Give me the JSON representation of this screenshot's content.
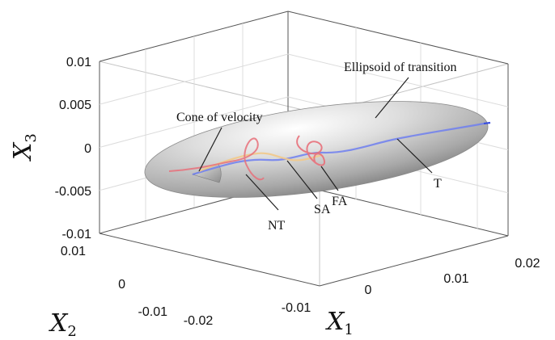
{
  "chart_data": {
    "type": "line3d",
    "xlabel": "X",
    "xlabel_sub": "1",
    "ylabel": "X",
    "ylabel_sub": "2",
    "zlabel": "X",
    "zlabel_sub": "3",
    "xlim": [
      -0.025,
      0.025
    ],
    "ylim": [
      -0.012,
      0.012
    ],
    "zlim": [
      -0.01,
      0.01
    ],
    "x_ticks": [
      "-0.02",
      "-0.01",
      "0",
      "0.01",
      "0.02"
    ],
    "y_ticks": [
      "-0.01",
      "0",
      "0.01"
    ],
    "z_ticks": [
      "-0.01",
      "-0.005",
      "0",
      "0.005",
      "0.01"
    ],
    "grid": true,
    "surfaces": [
      {
        "label": "Ellipsoid of transition",
        "color": "#b8b8b8"
      },
      {
        "label": "Cone of velocity",
        "color": "#9a9a9a"
      }
    ],
    "series": [
      {
        "label": "T",
        "color": "#6f7ff0"
      },
      {
        "label": "SA",
        "color": "#f2c98a"
      },
      {
        "label": "FA",
        "color": "#e8707a"
      },
      {
        "label": "NT",
        "color": "#e8707a"
      }
    ]
  }
}
